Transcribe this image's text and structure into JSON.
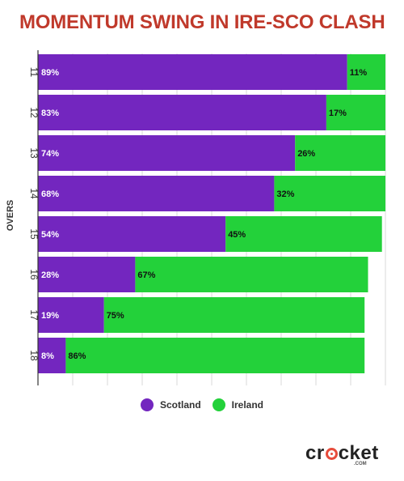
{
  "title": "MOMENTUM SWING IN IRE-SCO CLASH",
  "colors": {
    "scotland": "#7326bf",
    "ireland": "#23d13a",
    "title": "#c0392b"
  },
  "chart_data": {
    "type": "bar",
    "orientation": "horizontal",
    "stacked": true,
    "ylabel": "OVERS",
    "categories": [
      "11",
      "12",
      "13",
      "14",
      "15",
      "16",
      "17",
      "18"
    ],
    "series": [
      {
        "name": "Scotland",
        "values": [
          89,
          83,
          74,
          68,
          54,
          28,
          19,
          8
        ],
        "labels": [
          "89%",
          "83%",
          "74%",
          "68%",
          "54%",
          "28%",
          "19%",
          "8%"
        ]
      },
      {
        "name": "Ireland",
        "values": [
          11,
          17,
          26,
          32,
          45,
          67,
          75,
          86
        ],
        "labels": [
          "11%",
          "17%",
          "26%",
          "32%",
          "45%",
          "67%",
          "75%",
          "86%"
        ]
      }
    ],
    "xlim": [
      0,
      100
    ],
    "grid": true,
    "legend_position": "bottom-center"
  },
  "legend": {
    "scotland": "Scotland",
    "ireland": "Ireland"
  },
  "logo": {
    "text": "cricket",
    "sub": ".COM"
  }
}
